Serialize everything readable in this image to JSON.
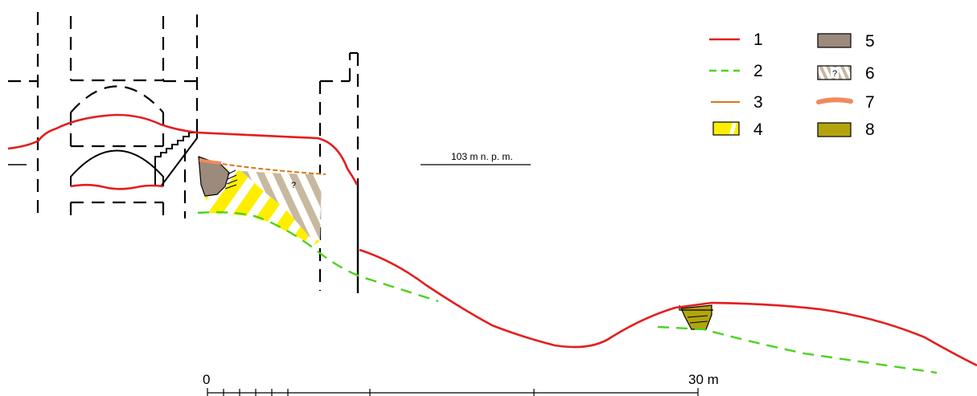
{
  "legend": [
    {
      "num": "1",
      "symbol": "red-solid-line",
      "color": "#e41e1e"
    },
    {
      "num": "2",
      "symbol": "green-dashed-line",
      "color": "#4cd21e"
    },
    {
      "num": "3",
      "symbol": "orange-thin-line",
      "color": "#d9771a"
    },
    {
      "num": "4",
      "symbol": "yellow-white-hatch",
      "color": "#ffee00"
    },
    {
      "num": "5",
      "symbol": "brown-fill",
      "color": "#9c8b7d"
    },
    {
      "num": "6",
      "symbol": "tan-white-hatch-question",
      "color": "#c8b8a0",
      "mark": "?"
    },
    {
      "num": "7",
      "symbol": "salmon-thick-line",
      "color": "#f08a5a"
    },
    {
      "num": "8",
      "symbol": "olive-fill",
      "color": "#b3a40f"
    }
  ],
  "level_label": "103 m n. p. m.",
  "question_mark": "?",
  "scale": {
    "start": "0",
    "end": "30 m"
  }
}
